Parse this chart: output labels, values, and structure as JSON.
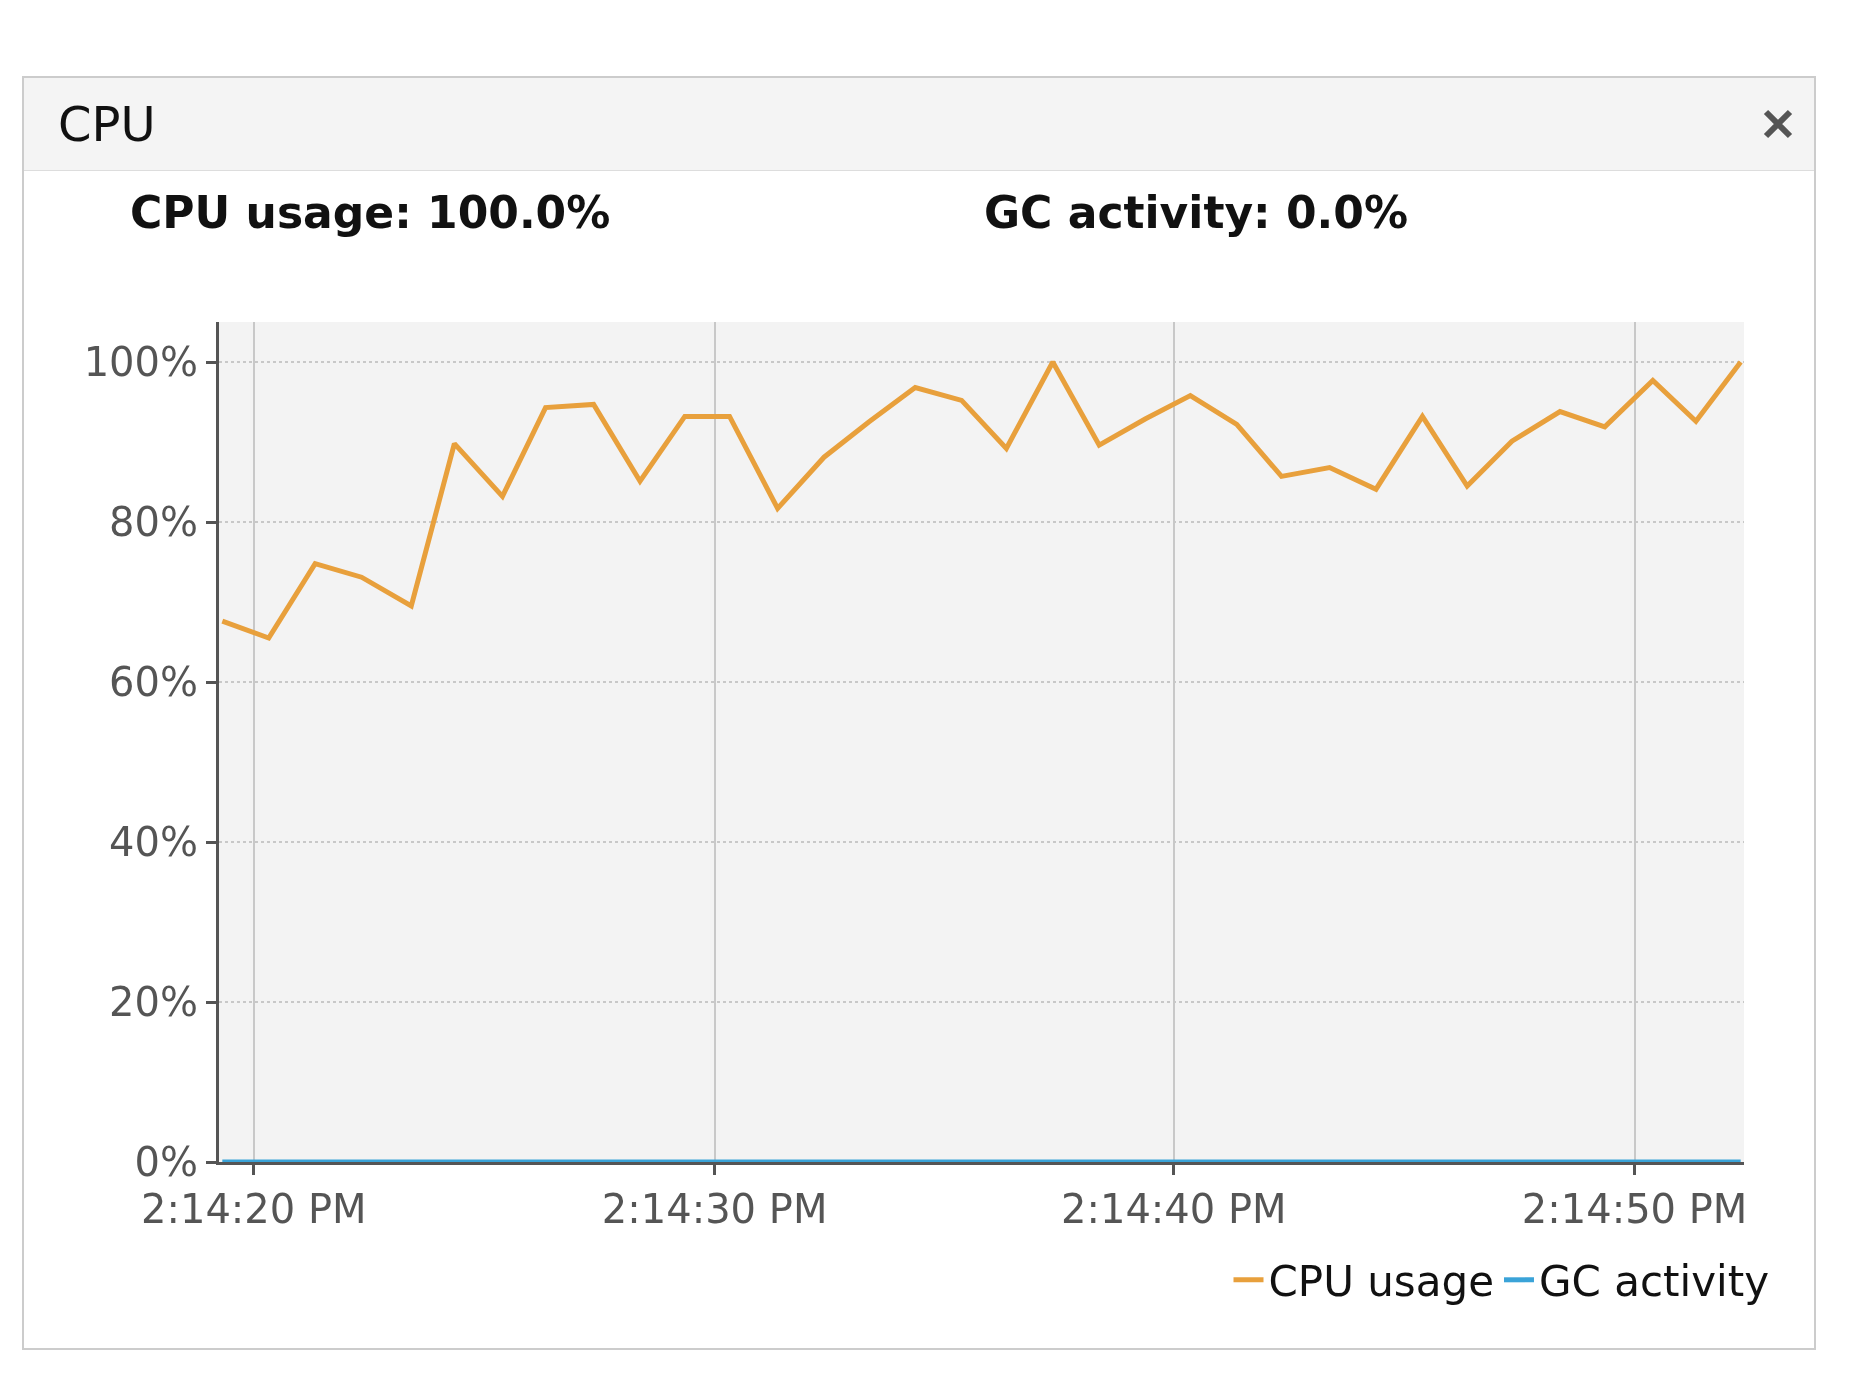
{
  "chart_data": {
    "type": "line",
    "title": "CPU",
    "annotations": [
      "CPU usage: 100.0%",
      "GC activity: 0.0%"
    ],
    "x": [
      14.2387,
      14.23898,
      14.23926,
      14.23954,
      14.23984,
      14.2401,
      14.24039,
      14.24065,
      14.24094,
      14.24122,
      14.24149,
      14.24176,
      14.24205,
      14.24233,
      14.2426,
      14.24288,
      14.24316,
      14.24343,
      14.24371,
      14.24399,
      14.24427,
      14.24454,
      14.24482,
      14.24509,
      14.24538,
      14.24566,
      14.24594,
      14.24621,
      14.24648,
      14.24677,
      14.24704,
      14.24733,
      14.24759,
      14.24786
    ],
    "series": [
      {
        "name": "CPU usage",
        "color": "#e8a03c",
        "values": [
          67.6,
          65.5,
          74.8,
          73.1,
          69.5,
          89.8,
          83.2,
          94.3,
          94.7,
          85.1,
          93.2,
          93.2,
          81.7,
          88.1,
          92.5,
          96.8,
          95.2,
          89.2,
          100,
          89.6,
          92.9,
          95.8,
          92.2,
          85.7,
          86.8,
          84.1,
          93.2,
          84.5,
          90.1,
          93.8,
          91.9,
          97.7,
          92.6,
          100
        ]
      },
      {
        "name": "GC activity",
        "color": "#3aa3d8",
        "values": [
          0,
          0,
          0,
          0,
          0,
          0,
          0,
          0,
          0,
          0,
          0,
          0,
          0,
          0,
          0,
          0,
          0,
          0,
          0,
          0,
          0,
          0,
          0,
          0,
          0,
          0,
          0,
          0,
          0,
          0,
          0,
          0,
          0,
          0
        ]
      }
    ],
    "xlim": [
      14.23868,
      14.24788
    ],
    "xticks": [
      {
        "value": 14.23889,
        "label": "2:14:20 PM"
      },
      {
        "value": 14.24167,
        "label": "2:14:30 PM"
      },
      {
        "value": 14.24444,
        "label": "2:14:40 PM"
      },
      {
        "value": 14.24722,
        "label": "2:14:50 PM"
      }
    ],
    "ylim": [
      0,
      105
    ],
    "yticks": [
      {
        "value": 0,
        "label": "0%"
      },
      {
        "value": 20,
        "label": "20%"
      },
      {
        "value": 40,
        "label": "40%"
      },
      {
        "value": 60,
        "label": "60%"
      },
      {
        "value": 80,
        "label": "80%"
      },
      {
        "value": 100,
        "label": "100%"
      }
    ],
    "grid": true,
    "legend": "bottom right",
    "marker": "none",
    "line_style": "solid"
  }
}
